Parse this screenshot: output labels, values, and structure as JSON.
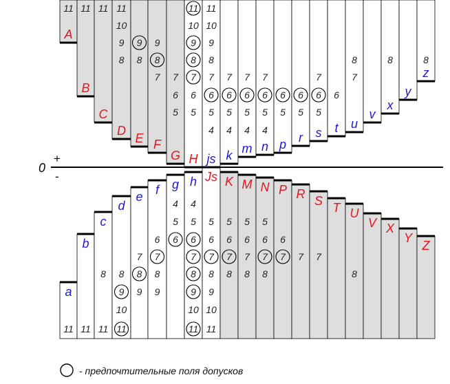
{
  "colors": {
    "red": "#e8141c",
    "blue": "#1a1ad6",
    "fill": "#dedede",
    "line": "#000000"
  },
  "zero_label": "0",
  "plus_sign": "+",
  "minus_sign": "-",
  "legend": {
    "symbol": "circle-icon",
    "text": "- предпочтительные поля допусков"
  },
  "holes_above": [
    {
      "label": "A",
      "grades": [
        "11"
      ],
      "circled": []
    },
    {
      "label": "B",
      "grades": [
        "11"
      ],
      "circled": []
    },
    {
      "label": "C",
      "grades": [
        "11"
      ],
      "circled": []
    },
    {
      "label": "D",
      "grades": [
        "11",
        "10",
        "9",
        "8"
      ],
      "circled": []
    },
    {
      "label": "E",
      "grades": [
        "9",
        "8"
      ],
      "circled": [
        "9"
      ]
    },
    {
      "label": "F",
      "grades": [
        "9",
        "8",
        "7"
      ],
      "circled": [
        "8"
      ]
    },
    {
      "label": "G",
      "grades": [
        "7",
        "6",
        "5"
      ],
      "circled": []
    },
    {
      "label": "H",
      "grades": [
        "11",
        "10",
        "9",
        "8",
        "7",
        "6",
        "5"
      ],
      "circled": [
        "11",
        "9",
        "8",
        "7"
      ]
    }
  ],
  "shafts_above": [
    {
      "label": "js",
      "grades": [
        "11",
        "10",
        "9",
        "8",
        "7",
        "6",
        "5",
        "4"
      ],
      "circled": [
        "6"
      ]
    },
    {
      "label": "k",
      "grades": [
        "7",
        "6",
        "5",
        "4"
      ],
      "circled": [
        "6"
      ]
    },
    {
      "label": "m",
      "grades": [
        "7",
        "6",
        "5",
        "4"
      ],
      "circled": [
        "6"
      ]
    },
    {
      "label": "n",
      "grades": [
        "7",
        "6",
        "5",
        "4"
      ],
      "circled": [
        "6"
      ]
    },
    {
      "label": "p",
      "grades": [
        "6",
        "5"
      ],
      "circled": [
        "6"
      ]
    },
    {
      "label": "r",
      "grades": [
        "6",
        "5"
      ],
      "circled": [
        "6"
      ]
    },
    {
      "label": "s",
      "grades": [
        "7",
        "6",
        "5"
      ],
      "circled": [
        "6"
      ]
    },
    {
      "label": "t",
      "grades": [
        "6"
      ],
      "circled": []
    },
    {
      "label": "u",
      "grades": [
        "8",
        "7"
      ],
      "circled": []
    },
    {
      "label": "v",
      "grades": [],
      "circled": []
    },
    {
      "label": "x",
      "grades": [
        "8"
      ],
      "circled": []
    },
    {
      "label": "y",
      "grades": [],
      "circled": []
    },
    {
      "label": "z",
      "grades": [
        "8"
      ],
      "circled": []
    }
  ],
  "shafts_below": [
    {
      "label": "a",
      "grades": [
        "11"
      ],
      "circled": []
    },
    {
      "label": "b",
      "grades": [
        "11"
      ],
      "circled": []
    },
    {
      "label": "c",
      "grades": [
        "11",
        "8"
      ],
      "circled": []
    },
    {
      "label": "d",
      "grades": [
        "11",
        "10",
        "9",
        "8"
      ],
      "circled": [
        "11",
        "9"
      ]
    },
    {
      "label": "e",
      "grades": [
        "9",
        "8",
        "7"
      ],
      "circled": [
        "8"
      ]
    },
    {
      "label": "f",
      "grades": [
        "9",
        "8",
        "7",
        "6"
      ],
      "circled": [
        "7"
      ]
    },
    {
      "label": "g",
      "grades": [
        "6",
        "5",
        "4"
      ],
      "circled": [
        "6"
      ]
    },
    {
      "label": "h",
      "grades": [
        "11",
        "10",
        "9",
        "8",
        "7",
        "6",
        "5",
        "4"
      ],
      "circled": [
        "11",
        "9",
        "8",
        "7",
        "6"
      ]
    }
  ],
  "holes_below": [
    {
      "label": "Js",
      "grades": [
        "11",
        "10",
        "9",
        "8",
        "7",
        "6",
        "5"
      ],
      "circled": [
        "7"
      ]
    },
    {
      "label": "K",
      "grades": [
        "8",
        "7",
        "6",
        "5"
      ],
      "circled": [
        "7"
      ]
    },
    {
      "label": "M",
      "grades": [
        "8",
        "7",
        "6",
        "5"
      ],
      "circled": []
    },
    {
      "label": "N",
      "grades": [
        "8",
        "7",
        "6",
        "5"
      ],
      "circled": [
        "7"
      ]
    },
    {
      "label": "P",
      "grades": [
        "7",
        "6"
      ],
      "circled": [
        "7"
      ]
    },
    {
      "label": "R",
      "grades": [
        "7"
      ],
      "circled": []
    },
    {
      "label": "S",
      "grades": [
        "7"
      ],
      "circled": []
    },
    {
      "label": "T",
      "grades": [],
      "circled": []
    },
    {
      "label": "U",
      "grades": [
        "8"
      ],
      "circled": []
    },
    {
      "label": "V",
      "grades": [],
      "circled": []
    },
    {
      "label": "X",
      "grades": [],
      "circled": []
    },
    {
      "label": "Y",
      "grades": [],
      "circled": []
    },
    {
      "label": "Z",
      "grades": [],
      "circled": []
    }
  ]
}
